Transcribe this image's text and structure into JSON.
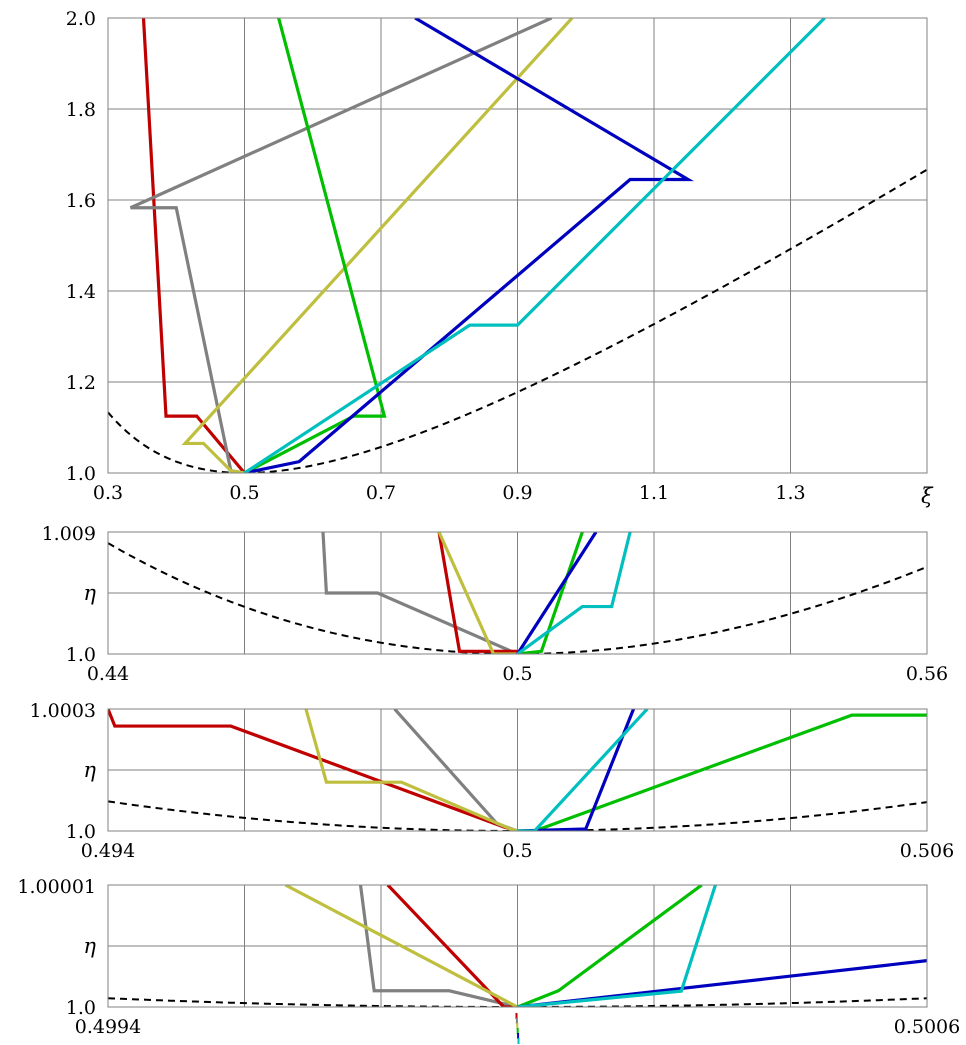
{
  "colors": {
    "red": "#c00000",
    "gray": "#808080",
    "yellow": "#bfbf3f",
    "green": "#00bf00",
    "blue": "#0000bf",
    "cyan": "#00bfbf",
    "reference": "#000000",
    "grid": "#808080"
  },
  "chart_data": [
    {
      "type": "line",
      "panel": "main",
      "xlabel": "ξ",
      "ylabel": "",
      "xlim": [
        0.3,
        1.5
      ],
      "ylim": [
        1.0,
        2.0
      ],
      "xticks": [
        "0.3",
        "0.5",
        "0.7",
        "0.9",
        "1.1",
        "1.3"
      ],
      "xtick_values": [
        0.3,
        0.5,
        0.7,
        0.9,
        1.1,
        1.3
      ],
      "yticks": [
        "1.0",
        "1.2",
        "1.4",
        "1.6",
        "1.8",
        "2.0"
      ],
      "ytick_values": [
        1.0,
        1.2,
        1.4,
        1.6,
        1.8,
        2.0
      ],
      "reference_curve": "dashed",
      "series": [
        {
          "color": "red",
          "x": [
            0.352,
            0.385,
            0.385,
            0.43,
            0.5
          ],
          "y": [
            2.0,
            1.125,
            1.125,
            1.125,
            1.0
          ]
        },
        {
          "color": "gray",
          "x": [
            0.95,
            0.333,
            0.333,
            0.4,
            0.48,
            0.5
          ],
          "y": [
            2.0,
            1.583,
            1.583,
            1.583,
            1.005,
            1.0
          ]
        },
        {
          "color": "yellow",
          "x": [
            0.98,
            0.413,
            0.44,
            0.48,
            0.5
          ],
          "y": [
            2.0,
            1.065,
            1.065,
            1.005,
            1.0
          ]
        },
        {
          "color": "green",
          "x": [
            0.55,
            0.705,
            0.66,
            0.5
          ],
          "y": [
            2.0,
            1.125,
            1.125,
            1.0
          ]
        },
        {
          "color": "blue",
          "x": [
            0.75,
            1.15,
            1.065,
            0.58,
            0.5
          ],
          "y": [
            2.0,
            1.645,
            1.645,
            1.025,
            1.0
          ]
        },
        {
          "color": "cyan",
          "x": [
            1.35,
            0.9,
            0.83,
            0.5
          ],
          "y": [
            2.0,
            1.325,
            1.325,
            1.0
          ]
        }
      ]
    },
    {
      "type": "line",
      "panel": "zoom1",
      "xlim": [
        0.44,
        0.56
      ],
      "ylim": [
        1.0,
        1.009
      ],
      "xticks": [
        "0.44",
        "0.5",
        "0.56"
      ],
      "xtick_values": [
        0.44,
        0.5,
        0.56
      ],
      "yticks": [
        "1.0",
        "η",
        "1.009"
      ],
      "ytick_values": [
        1.0,
        1.0045,
        1.009
      ],
      "series": [
        {
          "color": "gray",
          "x": [
            0.4715,
            0.472,
            0.4795,
            0.5
          ],
          "y": [
            1.009,
            1.0045,
            1.0045,
            1.0
          ]
        },
        {
          "color": "red",
          "x": [
            0.4885,
            0.4915,
            0.5
          ],
          "y": [
            1.009,
            1.0002,
            1.0002
          ]
        },
        {
          "color": "yellow",
          "x": [
            0.4885,
            0.4965,
            0.5
          ],
          "y": [
            1.009,
            1.0,
            1.0
          ]
        },
        {
          "color": "green",
          "x": [
            0.5,
            0.5035,
            0.5095
          ],
          "y": [
            1.0,
            1.0002,
            1.009
          ]
        },
        {
          "color": "blue",
          "x": [
            0.5,
            0.5115
          ],
          "y": [
            1.0,
            1.009
          ]
        },
        {
          "color": "cyan",
          "x": [
            0.5,
            0.5095,
            0.5138,
            0.5165
          ],
          "y": [
            1.0,
            1.0035,
            1.0035,
            1.009
          ]
        }
      ]
    },
    {
      "type": "line",
      "panel": "zoom2",
      "xlim": [
        0.494,
        0.506
      ],
      "ylim": [
        1.0,
        1.0003
      ],
      "xticks": [
        "0.494",
        "0.5",
        "0.506"
      ],
      "xtick_values": [
        0.494,
        0.5,
        0.506
      ],
      "yticks": [
        "1.0",
        "η",
        "1.0003"
      ],
      "ytick_values": [
        1.0,
        1.00015,
        1.0003
      ],
      "series": [
        {
          "color": "red",
          "x": [
            0.494,
            0.4941,
            0.4958,
            0.4998,
            0.5
          ],
          "y": [
            1.0003,
            1.000258,
            1.000258,
            1.00001,
            1.0
          ]
        },
        {
          "color": "gray",
          "x": [
            0.4982,
            0.4997,
            0.5
          ],
          "y": [
            1.0003,
            1.000018,
            1.0
          ]
        },
        {
          "color": "yellow",
          "x": [
            0.4969,
            0.4972,
            0.4983,
            0.4999,
            0.5
          ],
          "y": [
            1.0003,
            1.00012,
            1.00012,
            1.000005,
            1.0
          ]
        },
        {
          "color": "green",
          "x": [
            0.5,
            0.50025,
            0.5049,
            0.506
          ],
          "y": [
            1.0,
            1.0,
            1.000285,
            1.000285
          ]
        },
        {
          "color": "blue",
          "x": [
            0.5,
            0.501,
            0.5017
          ],
          "y": [
            1.0,
            1.000005,
            1.0003
          ]
        },
        {
          "color": "cyan",
          "x": [
            0.5,
            0.50025,
            0.5019
          ],
          "y": [
            1.0,
            1.0,
            1.0003
          ]
        }
      ]
    },
    {
      "type": "line",
      "panel": "zoom3",
      "xlim": [
        0.4994,
        0.5006
      ],
      "ylim": [
        1.0,
        1.00001
      ],
      "xticks": [
        "0.4994",
        "0.5006"
      ],
      "xtick_values": [
        0.4994,
        0.5006
      ],
      "yticks": [
        "1.0",
        "η",
        "1.00001"
      ],
      "ytick_values": [
        1.0,
        1.000005,
        1.00001
      ],
      "series": [
        {
          "color": "gray",
          "x": [
            0.49977,
            0.49979,
            0.4999,
            0.5
          ],
          "y": [
            1.00001,
            1.00000133,
            1.00000133,
            1.0
          ]
        },
        {
          "color": "red",
          "x": [
            0.49981,
            0.49998,
            0.5
          ],
          "y": [
            1.00001,
            1.0,
            1.0
          ]
        },
        {
          "color": "yellow",
          "x": [
            0.49966,
            0.5
          ],
          "y": [
            1.00001,
            1.0
          ]
        },
        {
          "color": "green",
          "x": [
            0.5,
            0.50006,
            0.50027
          ],
          "y": [
            1.0,
            1.00000133,
            1.00001
          ]
        },
        {
          "color": "blue",
          "x": [
            0.5,
            0.5006
          ],
          "y": [
            1.0,
            1.0000038
          ]
        },
        {
          "color": "cyan",
          "x": [
            0.5,
            0.50024,
            0.50029
          ],
          "y": [
            1.0,
            1.0000013,
            1.00001
          ]
        }
      ]
    }
  ]
}
